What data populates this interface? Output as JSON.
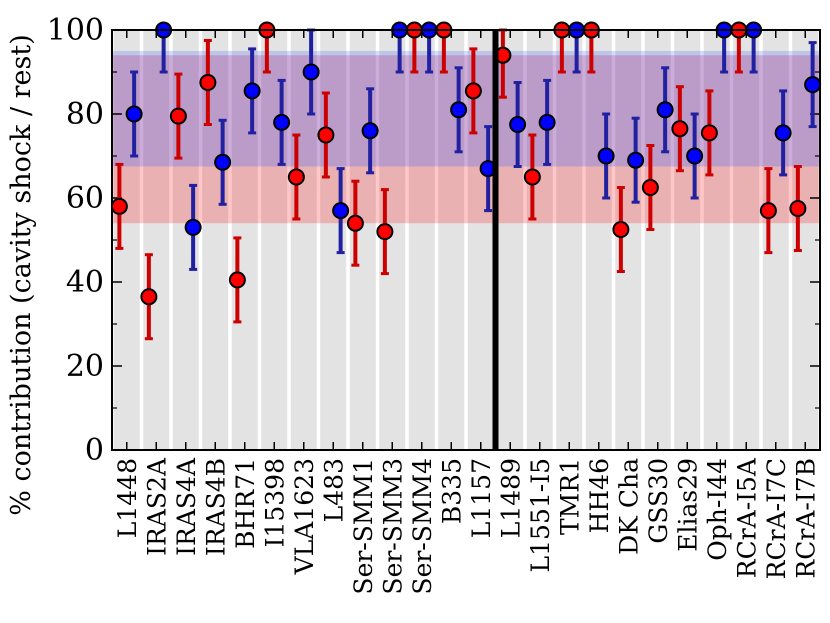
{
  "chart_data": {
    "type": "scatter",
    "ylabel": "% contribution (cavity shock / rest)",
    "ylim": [
      0,
      100
    ],
    "yticks": [
      0,
      20,
      40,
      60,
      80,
      100
    ],
    "categories": [
      "L1448",
      "IRAS2A",
      "IRAS4A",
      "IRAS4B",
      "BHR71",
      "I15398",
      "VLA1623",
      "L483",
      "Ser-SMM1",
      "Ser-SMM3",
      "Ser-SMM4",
      "B335",
      "L1157",
      "L1489",
      "L1551-I5",
      "TMR1",
      "HH46",
      "DK Cha",
      "GSS30",
      "Elias29",
      "Oph-I44",
      "RCrA-I5A",
      "RCrA-I7C",
      "RCrA-I7B"
    ],
    "divider_after_index": 12,
    "series": [
      {
        "name": "red",
        "color": "#ff0000",
        "errcolor": "#cc0000",
        "offset": -0.25,
        "values": [
          58,
          36.5,
          79.5,
          87.5,
          40.5,
          100,
          65,
          75,
          54,
          52,
          100,
          100,
          85.5,
          94,
          65,
          100,
          100,
          52.5,
          62.5,
          76.5,
          75.5,
          100,
          57,
          57.5
        ],
        "errors": [
          10,
          10,
          10,
          10,
          10,
          10,
          10,
          10,
          10,
          10,
          10,
          10,
          10,
          10,
          10,
          10,
          10,
          10,
          10,
          10,
          10,
          10,
          10,
          10
        ]
      },
      {
        "name": "blue",
        "color": "#0000ff",
        "errcolor": "#2020a0",
        "offset": 0.25,
        "values": [
          80,
          100,
          53,
          68.5,
          85.5,
          78,
          90,
          57,
          76,
          100,
          100,
          81,
          67,
          77.5,
          78,
          100,
          70,
          69,
          81,
          70,
          100,
          100,
          75.5,
          87
        ],
        "errors": [
          10,
          10,
          10,
          10,
          10,
          10,
          10,
          10,
          10,
          10,
          10,
          10,
          10,
          10,
          10,
          10,
          10,
          10,
          10,
          10,
          10,
          10,
          10,
          10
        ]
      }
    ],
    "bands": [
      {
        "name": "red-band",
        "color": "#ff0000",
        "opacity": 0.22,
        "range": [
          54,
          67.5
        ]
      },
      {
        "name": "purple-band",
        "color": "#7f30a0",
        "opacity": 0.4,
        "range": [
          67.5,
          94
        ]
      },
      {
        "name": "blue-band-top",
        "color": "#3060ff",
        "opacity": 0.22,
        "range": [
          94,
          95
        ]
      }
    ]
  }
}
